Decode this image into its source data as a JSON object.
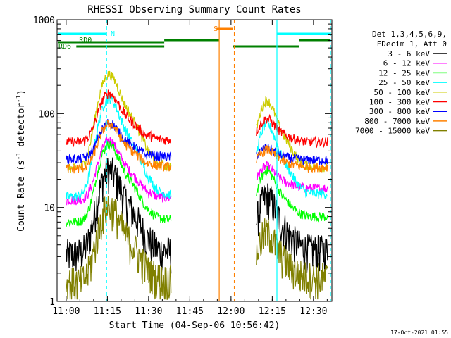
{
  "chart_data": {
    "type": "line",
    "title": "RHESSI Observing Summary Count Rates",
    "xlabel": "Start Time (04-Sep-06 10:56:42)",
    "ylabel_main": "Count Rate (s",
    "ylabel_sup": "-1",
    "ylabel_rest": " detector",
    "ylabel_close": ")",
    "yscale": "log",
    "ylim": [
      1,
      1000
    ],
    "xlim_minutes": [
      0,
      36.7
    ],
    "x_ticks": [
      {
        "t": 3.3,
        "label": "11:00"
      },
      {
        "t": 18.3,
        "label": "11:15"
      },
      {
        "t": 33.3,
        "label": "11:30"
      },
      {
        "t": 48.3,
        "label": "11:45"
      },
      {
        "t": 63.3,
        "label": "12:00"
      },
      {
        "t": 78.3,
        "label": "12:15"
      },
      {
        "t": 93.3,
        "label": "12:30"
      }
    ],
    "y_ticks": [
      {
        "v": 1,
        "label": "1"
      },
      {
        "v": 10,
        "label": "10"
      },
      {
        "v": 100,
        "label": "100"
      },
      {
        "v": 1000,
        "label": "1000"
      }
    ],
    "legend_header": [
      "Det 1,3,4,5,6,9,",
      "FDecim 1, Att 0"
    ],
    "series": [
      {
        "name": "3 - 6 keV",
        "color": "#000000",
        "peak": 24,
        "base": 3.2,
        "post": 3.5
      },
      {
        "name": "6 - 12 keV",
        "color": "#ff00ff",
        "peak": 50,
        "base": 12,
        "post": 16
      },
      {
        "name": "12 - 25 keV",
        "color": "#00ff00",
        "peak": 45,
        "base": 7,
        "post": 8
      },
      {
        "name": "25 - 50 keV",
        "color": "#00ffff",
        "peak": 140,
        "base": 13,
        "post": 14
      },
      {
        "name": "50 - 100 keV",
        "color": "#cccc00",
        "peak": 250,
        "base": 26,
        "post": 27
      },
      {
        "name": "100 - 300 keV",
        "color": "#ff0000",
        "peak": 160,
        "base": 50,
        "post": 50
      },
      {
        "name": "300 - 800 keV",
        "color": "#0000ff",
        "peak": 78,
        "base": 33,
        "post": 32
      },
      {
        "name": "800 - 7000 keV",
        "color": "#ff8000",
        "peak": 75,
        "base": 26,
        "post": 27
      },
      {
        "name": "7000 - 15000 keV",
        "color": "#808000",
        "peak": 10,
        "base": 1.6,
        "post": 1.8
      }
    ],
    "annotations": [
      {
        "text": "N",
        "color": "#00ffff"
      },
      {
        "text": "S",
        "color": "#ff8000"
      },
      {
        "text": "RD0",
        "color": "#008000"
      },
      {
        "text": "RD6",
        "color": "#008000"
      }
    ]
  },
  "footer": {
    "timestamp": "17-Oct-2021 01:55"
  }
}
